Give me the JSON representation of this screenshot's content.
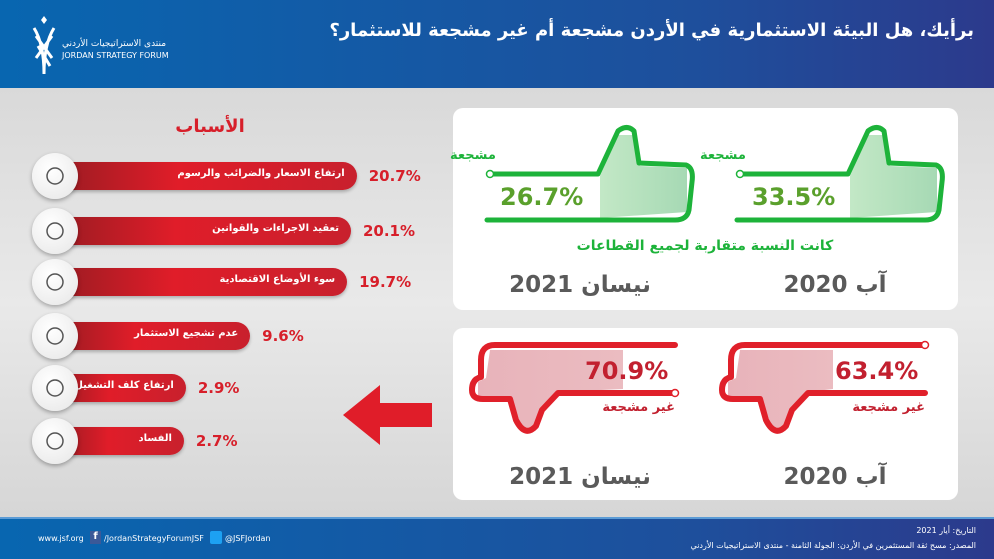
{
  "header": {
    "title": "برأيك، هل البيئة الاستثمارية في الأردن مشجعة أم غير مشجعة للاستثمار؟",
    "logo_ar": "منتدى الاستراتيجيات الأردني",
    "logo_en": "JORDAN STRATEGY FORUM"
  },
  "reasons": {
    "title": "الأسباب"
  },
  "chart_data": {
    "type": "bar",
    "orientation": "horizontal",
    "title": "الأسباب",
    "categories": [
      "ارتفاع الاسعار والضرائب والرسوم",
      "تعقيد الاجراءات والقوانين",
      "سوء الأوضاع الاقتصادية",
      "عدم تشجيع الاستثمار",
      "ارتفاع كلف التشغيل",
      "الفساد"
    ],
    "values": [
      20.7,
      20.1,
      19.7,
      9.6,
      2.9,
      2.7
    ],
    "labels": [
      "20.7%",
      "20.1%",
      "19.7%",
      "9.6%",
      "2.9%",
      "2.7%"
    ],
    "icons": [
      "money-growth-icon",
      "documents-search-icon",
      "down-arrow-icon",
      "briefcase-chart-icon",
      "hand-coins-icon",
      "no-corruption-icon"
    ],
    "color": "#d71f2a"
  },
  "encouraging": {
    "note": "كانت النسبة متقاربة لجميع القطاعات",
    "items": [
      {
        "label": "مشجعة",
        "value": "33.5%",
        "date": "آب 2020"
      },
      {
        "label": "مشجعة",
        "value": "26.7%",
        "date": "نيسان 2021"
      }
    ],
    "color": "#1db33a"
  },
  "discouraging": {
    "items": [
      {
        "label": "غير مشجعة",
        "value": "63.4%",
        "date": "آب 2020"
      },
      {
        "label": "غير مشجعة",
        "value": "70.9%",
        "date": "نيسان 2021"
      }
    ],
    "color": "#e0202a"
  },
  "footer": {
    "website": "www.jsf.org",
    "facebook": "/JordanStrategyForumJSF",
    "twitter": "@JSFJordan",
    "date": "التاريخ: أيار 2021",
    "source": "المصدر: مسح ثقة المستثمرين في الأردن: الجولة الثامنة - منتدى الاستراتيجيات الأردني"
  }
}
